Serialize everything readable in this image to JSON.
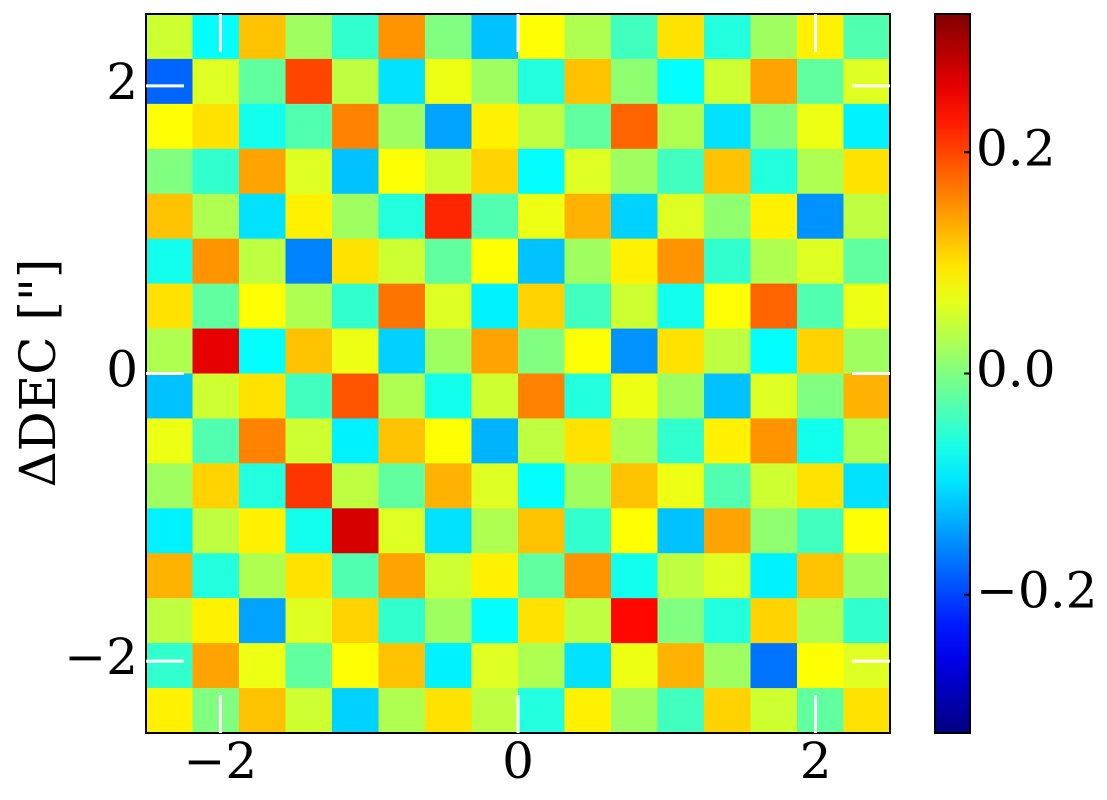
{
  "chart_data": {
    "type": "heatmap",
    "colormap": "jet",
    "ylabel": "ΔDEC [\"]",
    "xlim": [
      -2.5,
      2.5
    ],
    "ylim": [
      -2.5,
      2.5
    ],
    "xticks": [
      {
        "value": -2,
        "label": "−2"
      },
      0,
      2
    ],
    "yticks": [
      {
        "value": -2,
        "label": "−2"
      },
      0,
      2
    ],
    "clim": [
      -0.325,
      0.325
    ],
    "cticks": [
      {
        "value": -0.2,
        "label": "−0.2"
      },
      {
        "value": 0,
        "label": "0.0"
      },
      0.2
    ],
    "z": [
      [
        0.05,
        -0.08,
        0.12,
        0.02,
        -0.05,
        0.15,
        0.0,
        -0.12,
        0.08,
        0.03,
        -0.04,
        0.1,
        -0.06,
        0.02,
        0.09,
        -0.03
      ],
      [
        -0.18,
        0.06,
        -0.02,
        0.2,
        0.04,
        -0.1,
        0.07,
        0.02,
        -0.06,
        0.12,
        0.01,
        -0.08,
        0.05,
        0.14,
        -0.02,
        0.06
      ],
      [
        0.08,
        0.1,
        -0.07,
        -0.03,
        0.16,
        0.02,
        -0.14,
        0.09,
        0.04,
        -0.02,
        0.18,
        0.03,
        -0.1,
        0.0,
        0.07,
        -0.09
      ],
      [
        0.0,
        -0.05,
        0.14,
        0.06,
        -0.12,
        0.08,
        0.05,
        0.11,
        -0.08,
        0.06,
        0.02,
        -0.04,
        0.12,
        -0.06,
        0.03,
        0.1
      ],
      [
        0.12,
        0.03,
        -0.1,
        0.09,
        0.02,
        -0.06,
        0.22,
        -0.03,
        0.07,
        0.13,
        -0.11,
        0.06,
        0.01,
        0.09,
        -0.15,
        0.04
      ],
      [
        -0.07,
        0.15,
        0.04,
        -0.16,
        0.1,
        0.05,
        -0.02,
        0.08,
        -0.12,
        0.02,
        0.09,
        0.15,
        -0.05,
        0.03,
        0.06,
        -0.02
      ],
      [
        0.1,
        -0.02,
        0.08,
        0.03,
        -0.05,
        0.17,
        0.06,
        -0.09,
        0.11,
        -0.04,
        0.05,
        -0.07,
        0.08,
        0.18,
        -0.03,
        0.07
      ],
      [
        0.03,
        0.26,
        -0.08,
        0.12,
        0.07,
        -0.11,
        0.02,
        0.14,
        0.0,
        0.08,
        -0.15,
        0.1,
        0.04,
        -0.08,
        0.11,
        0.02
      ],
      [
        -0.12,
        0.05,
        0.1,
        -0.04,
        0.19,
        0.03,
        -0.07,
        0.05,
        0.16,
        -0.06,
        0.07,
        0.02,
        -0.12,
        0.06,
        0.0,
        0.13
      ],
      [
        0.07,
        -0.03,
        0.16,
        0.05,
        -0.09,
        0.12,
        0.08,
        -0.13,
        0.04,
        0.1,
        0.03,
        -0.05,
        0.09,
        0.15,
        -0.07,
        0.03
      ],
      [
        0.02,
        0.11,
        -0.06,
        0.21,
        0.04,
        -0.02,
        0.13,
        0.06,
        -0.08,
        0.02,
        0.12,
        0.07,
        -0.03,
        0.05,
        0.1,
        -0.1
      ],
      [
        -0.09,
        0.04,
        0.09,
        -0.07,
        0.27,
        0.06,
        -0.1,
        0.03,
        0.12,
        -0.05,
        0.08,
        -0.12,
        0.14,
        0.01,
        -0.04,
        0.08
      ],
      [
        0.13,
        -0.06,
        0.03,
        0.1,
        -0.03,
        0.14,
        0.05,
        0.09,
        -0.02,
        0.15,
        -0.07,
        0.04,
        0.06,
        -0.09,
        0.12,
        0.02
      ],
      [
        0.04,
        0.09,
        -0.14,
        0.06,
        0.11,
        -0.05,
        0.02,
        -0.08,
        0.1,
        0.04,
        0.24,
        0.0,
        -0.06,
        0.11,
        0.03,
        -0.05
      ],
      [
        -0.05,
        0.14,
        0.07,
        -0.02,
        0.08,
        0.12,
        -0.09,
        0.06,
        0.03,
        -0.1,
        0.07,
        0.13,
        0.02,
        -0.17,
        0.08,
        0.06
      ],
      [
        0.09,
        0.0,
        0.12,
        0.05,
        -0.11,
        0.03,
        0.1,
        0.04,
        -0.06,
        0.09,
        0.02,
        -0.04,
        0.11,
        0.05,
        -0.02,
        0.1
      ]
    ]
  }
}
